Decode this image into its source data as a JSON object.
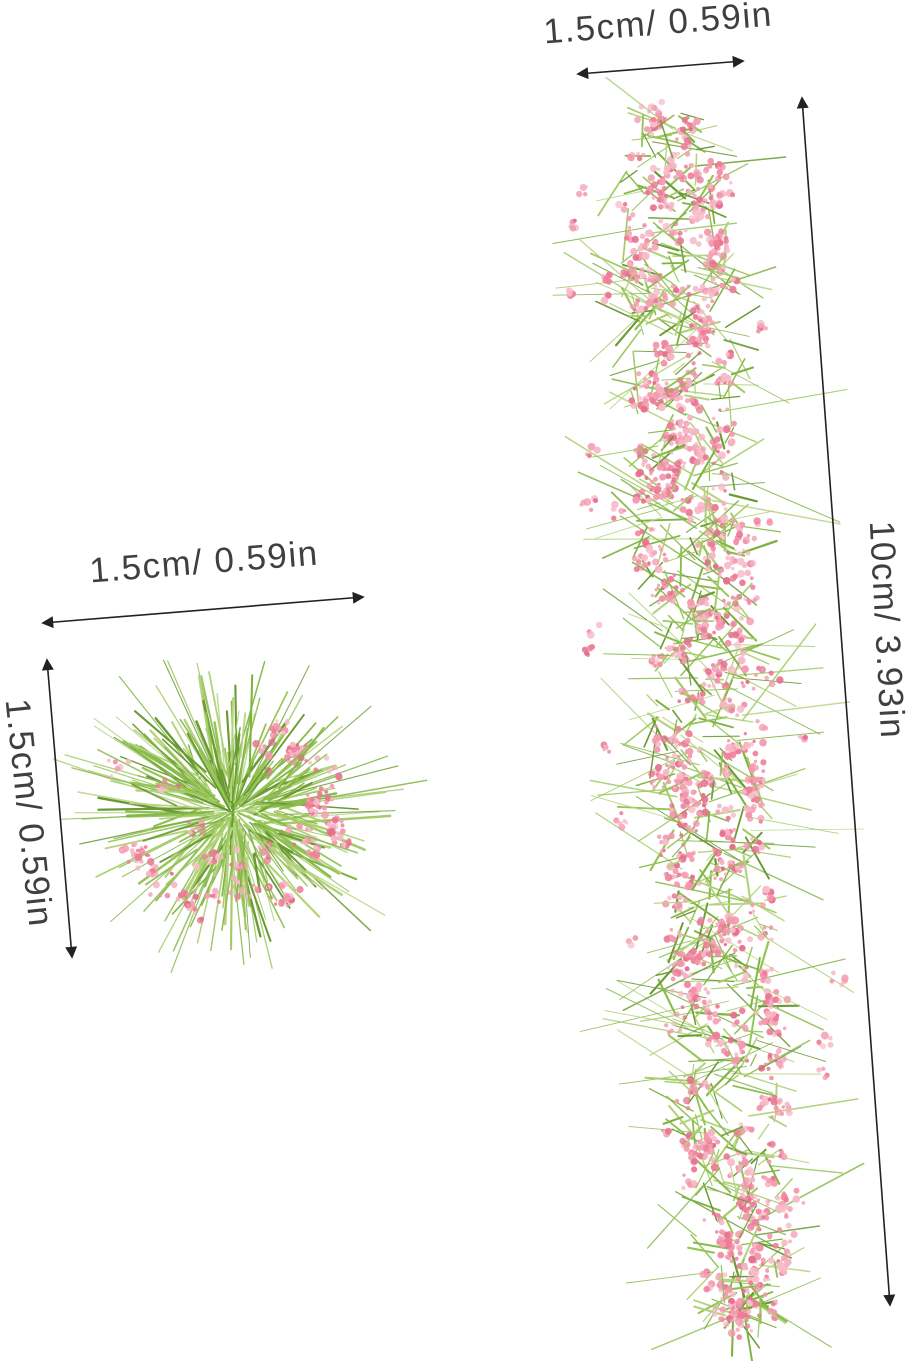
{
  "labels": {
    "strip_width": "1.5cm/ 0.59in",
    "strip_height": "10cm/ 3.93in",
    "tuft_width": "1.5cm/ 0.59in",
    "tuft_height": "1.5cm/ 0.59in"
  },
  "colors": {
    "background": "#ffffff",
    "label_text": "#3f3f3f",
    "arrow": "#222222",
    "grass_greens": [
      "#7fb340",
      "#94c556",
      "#6a9a33",
      "#b5d37e",
      "#a4cb66",
      "#8bbb4d"
    ],
    "flower_pinks": [
      "#f297ab",
      "#ee7d98",
      "#f6b3c3",
      "#e5708e",
      "#f49cb1",
      "#f8bcc9"
    ]
  }
}
